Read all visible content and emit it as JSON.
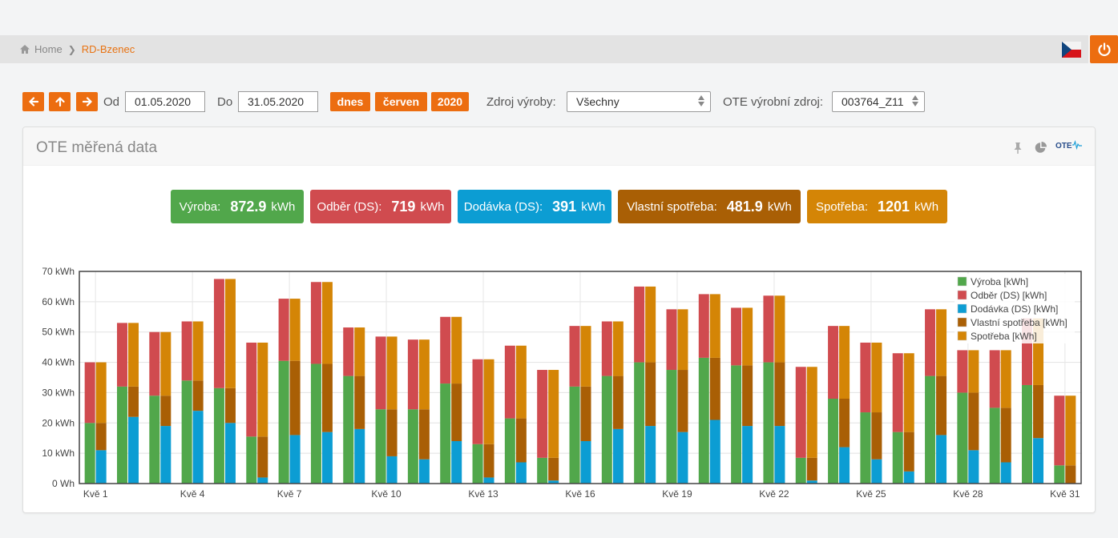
{
  "breadcrumb": {
    "home": "Home",
    "current": "RD-Bzenec"
  },
  "toolbar": {
    "od_label": "Od",
    "od_value": "01.05.2020",
    "do_label": "Do",
    "do_value": "31.05.2020",
    "btn_today": "dnes",
    "btn_month": "červen",
    "btn_year": "2020",
    "zdroj_label": "Zdroj výroby:",
    "zdroj_value": "Všechny",
    "ote_label": "OTE výrobní zdroj:",
    "ote_value": "003764_Z11"
  },
  "panel": {
    "title": "OTE měřená data",
    "logo_text": "OTE"
  },
  "stats": [
    {
      "label": "Výroba:",
      "value": "872.9",
      "unit": "kWh",
      "color": "#51a74b"
    },
    {
      "label": "Odběr (DS):",
      "value": "719",
      "unit": "kWh",
      "color": "#d04b4f"
    },
    {
      "label": "Dodávka (DS):",
      "value": "391",
      "unit": "kWh",
      "color": "#0c9dd3"
    },
    {
      "label": "Vlastní spotřeba:",
      "value": "481.9",
      "unit": "kWh",
      "color": "#a95f05"
    },
    {
      "label": "Spotřeba:",
      "value": "1201",
      "unit": "kWh",
      "color": "#d48506"
    }
  ],
  "chart_data": {
    "type": "bar",
    "x_tick_labels": [
      "Kvě 1",
      "Kvě 4",
      "Kvě 7",
      "Kvě 10",
      "Kvě 13",
      "Kvě 16",
      "Kvě 19",
      "Kvě 22",
      "Kvě 25",
      "Kvě 28",
      "Kvě 31"
    ],
    "y_tick_labels": [
      "0 Wh",
      "10 kWh",
      "20 kWh",
      "30 kWh",
      "40 kWh",
      "50 kWh",
      "60 kWh",
      "70 kWh"
    ],
    "ylim": [
      0,
      70
    ],
    "legend_position": "top-right",
    "grid": true,
    "days": [
      1,
      2,
      3,
      4,
      5,
      6,
      7,
      8,
      9,
      10,
      11,
      12,
      13,
      14,
      15,
      16,
      17,
      18,
      19,
      20,
      21,
      22,
      23,
      24,
      25,
      26,
      27,
      28,
      29,
      30,
      31
    ],
    "series": [
      {
        "name": "Výroba [kWh]",
        "color": "#51a74b",
        "stack": "left",
        "values": [
          20,
          32,
          29,
          34,
          31.5,
          15.5,
          40.5,
          39.5,
          35.5,
          24.5,
          24.5,
          33,
          13,
          21.5,
          8.5,
          32,
          35.5,
          40,
          37.5,
          41.5,
          39,
          40,
          8.5,
          28,
          23.5,
          17,
          35.5,
          30,
          25,
          32.5,
          6
        ]
      },
      {
        "name": "Odběr (DS) [kWh]",
        "color": "#d04b4f",
        "stack": "left",
        "values": [
          20,
          21,
          21,
          19.5,
          36,
          31,
          20.5,
          27,
          16,
          24,
          23,
          22,
          28,
          24,
          29,
          20,
          18,
          25,
          20,
          21,
          19,
          22,
          30,
          24,
          23,
          26,
          22,
          14,
          19,
          22,
          23
        ]
      },
      {
        "name": "Dodávka (DS) [kWh]",
        "color": "#0c9dd3",
        "stack": "right",
        "values": [
          11,
          22,
          19,
          24,
          20,
          2,
          16,
          17,
          18,
          9,
          8,
          14,
          2,
          7,
          1,
          14,
          18,
          19,
          17,
          21,
          19,
          19,
          1,
          12,
          8,
          4,
          16,
          11,
          7,
          15,
          0
        ]
      },
      {
        "name": "Vlastní spotřeba [kWh]",
        "color": "#a95f05",
        "stack": "right",
        "values": [
          9,
          10,
          10,
          10,
          11.5,
          13.5,
          24.5,
          22.5,
          17.5,
          15.5,
          16.5,
          19,
          11,
          14.5,
          7.5,
          18,
          17.5,
          21,
          20.5,
          20.5,
          20,
          21,
          7.5,
          16,
          15.5,
          13,
          19.5,
          19,
          18,
          17.5,
          6
        ]
      },
      {
        "name": "Spotřeba [kWh]",
        "color": "#d48506",
        "stack": "right",
        "values": [
          40,
          53,
          50,
          53.5,
          67.5,
          46.5,
          61,
          66.5,
          51.5,
          48.5,
          47.5,
          55,
          41,
          45.5,
          37.5,
          52,
          53.5,
          65,
          57.5,
          62.5,
          58,
          62,
          38.5,
          52,
          46.5,
          43,
          57.5,
          44,
          44,
          54.5,
          29
        ]
      }
    ]
  }
}
